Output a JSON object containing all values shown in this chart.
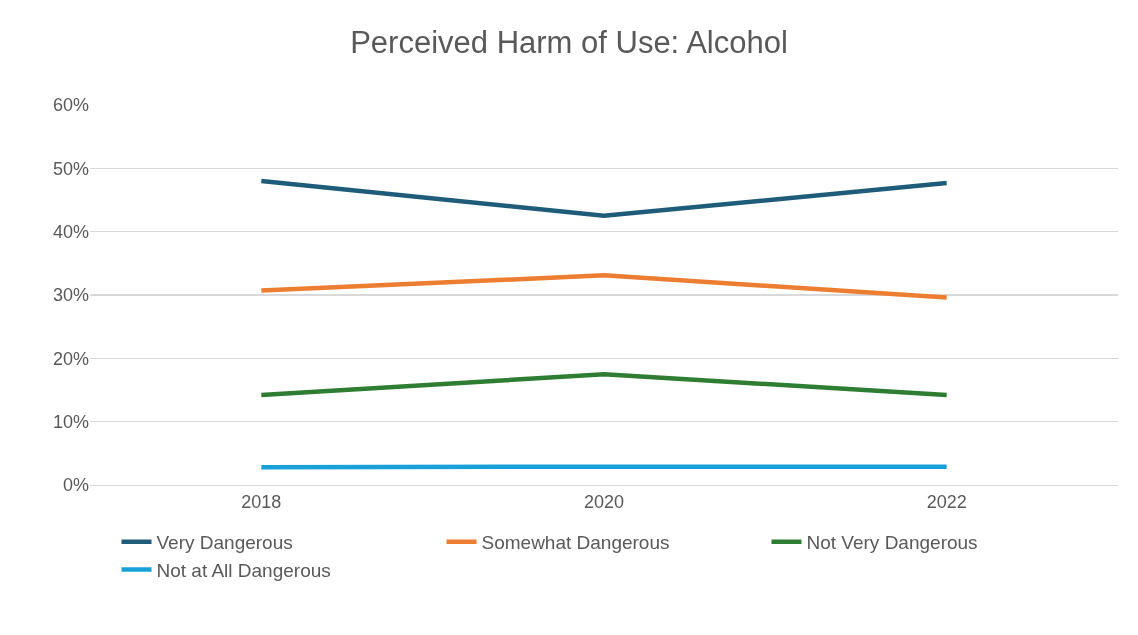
{
  "chart_data": {
    "type": "line",
    "title": "Perceived Harm of Use: Alcohol",
    "categories": [
      "2018",
      "2020",
      "2022"
    ],
    "series": [
      {
        "name": "Very Dangerous",
        "color": "#1f5c7a",
        "values": [
          48,
          42.5,
          47.7
        ]
      },
      {
        "name": "Somewhat Dangerous",
        "color": "#ed7d31",
        "values": [
          30.7,
          33.1,
          29.6
        ]
      },
      {
        "name": "Not Very Dangerous",
        "color": "#2e7d32",
        "values": [
          14.2,
          17.5,
          14.2
        ]
      },
      {
        "name": "Not at All Dangerous",
        "color": "#1aa0d8",
        "values": [
          2.8,
          2.9,
          2.9
        ]
      }
    ],
    "ylim": [
      0,
      60
    ],
    "yticks": [
      {
        "value": 0,
        "label": "0%"
      },
      {
        "value": 10,
        "label": "10%"
      },
      {
        "value": 20,
        "label": "20%"
      },
      {
        "value": 30,
        "label": "30%"
      },
      {
        "value": 40,
        "label": "40%"
      },
      {
        "value": 50,
        "label": "50%"
      },
      {
        "value": 60,
        "label": "60%"
      }
    ],
    "grid": "y",
    "legend": "bottom",
    "marker": "none",
    "line_style": "solid"
  }
}
